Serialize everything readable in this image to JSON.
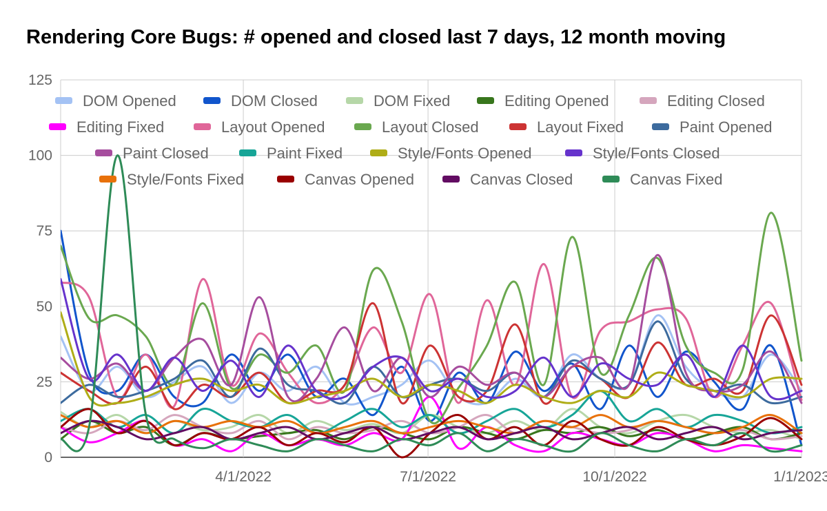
{
  "chart_data": {
    "type": "line",
    "title": "Rendering Core Bugs: # opened and closed last 7 days, 12 month moving",
    "xlabel": "",
    "ylabel": "",
    "ylim": [
      0,
      125
    ],
    "y_ticks": [
      0,
      25,
      50,
      75,
      100,
      125
    ],
    "xlim": [
      "2022-01-01",
      "2023-01-01"
    ],
    "x_ticks": [
      "4/1/2022",
      "7/1/2022",
      "10/1/2022",
      "1/1/2023"
    ],
    "grid": true,
    "legend_position": "top",
    "x_dates": [
      "2022-01-01",
      "2022-01-15",
      "2022-01-29",
      "2022-02-12",
      "2022-02-26",
      "2022-03-12",
      "2022-03-26",
      "2022-04-09",
      "2022-04-23",
      "2022-05-07",
      "2022-05-21",
      "2022-06-04",
      "2022-06-18",
      "2022-07-02",
      "2022-07-16",
      "2022-07-30",
      "2022-08-13",
      "2022-08-27",
      "2022-09-10",
      "2022-09-24",
      "2022-10-08",
      "2022-10-22",
      "2022-11-05",
      "2022-11-19",
      "2022-12-03",
      "2022-12-17",
      "2023-01-01"
    ],
    "series": [
      {
        "name": "DOM Opened",
        "color": "#a4c2f4",
        "values": [
          40,
          22,
          30,
          20,
          25,
          30,
          18,
          28,
          22,
          30,
          18,
          20,
          24,
          32,
          20,
          18,
          26,
          20,
          34,
          26,
          24,
          47,
          30,
          22,
          20,
          34,
          22
        ]
      },
      {
        "name": "DOM Closed",
        "color": "#1155cc",
        "values": [
          75,
          28,
          22,
          34,
          20,
          18,
          34,
          22,
          34,
          20,
          26,
          14,
          30,
          12,
          28,
          18,
          35,
          22,
          31,
          16,
          37,
          20,
          35,
          25,
          16,
          37,
          4
        ]
      },
      {
        "name": "DOM Fixed",
        "color": "#b6d7a8",
        "values": [
          15,
          10,
          14,
          8,
          12,
          9,
          10,
          14,
          8,
          12,
          9,
          11,
          8,
          14,
          10,
          8,
          12,
          9,
          16,
          10,
          8,
          12,
          14,
          10,
          8,
          9,
          6
        ]
      },
      {
        "name": "Editing Opened",
        "color": "#38761d",
        "values": [
          6,
          12,
          8,
          10,
          4,
          8,
          6,
          7,
          8,
          9,
          6,
          10,
          8,
          6,
          10,
          8,
          6,
          9,
          8,
          10,
          7,
          9,
          6,
          8,
          10,
          6,
          8
        ]
      },
      {
        "name": "Editing Closed",
        "color": "#d5a6bd",
        "values": [
          10,
          8,
          12,
          9,
          14,
          10,
          8,
          12,
          6,
          10,
          8,
          9,
          12,
          8,
          10,
          14,
          8,
          12,
          10,
          8,
          9,
          12,
          10,
          8,
          9,
          6,
          7
        ]
      },
      {
        "name": "Editing Fixed",
        "color": "#ff00ff",
        "values": [
          10,
          5,
          8,
          12,
          4,
          6,
          2,
          8,
          4,
          6,
          4,
          8,
          6,
          20,
          3,
          10,
          4,
          2,
          8,
          6,
          4,
          8,
          6,
          2,
          4,
          3,
          2
        ]
      },
      {
        "name": "Layout Opened",
        "color": "#e06699",
        "values": [
          58,
          53,
          20,
          34,
          17,
          59,
          24,
          41,
          28,
          18,
          24,
          43,
          28,
          54,
          18,
          52,
          24,
          64,
          20,
          42,
          45,
          49,
          46,
          20,
          37,
          51,
          19
        ]
      },
      {
        "name": "Layout Closed",
        "color": "#6aa84f",
        "values": [
          70,
          46,
          47,
          40,
          24,
          51,
          23,
          34,
          28,
          37,
          22,
          62,
          45,
          12,
          23,
          37,
          58,
          24,
          73,
          28,
          47,
          66,
          37,
          28,
          29,
          81,
          32
        ]
      },
      {
        "name": "Layout Fixed",
        "color": "#cc3333",
        "values": [
          28,
          22,
          18,
          30,
          16,
          24,
          20,
          28,
          18,
          22,
          24,
          51,
          18,
          37,
          20,
          22,
          44,
          18,
          30,
          26,
          20,
          38,
          24,
          26,
          22,
          47,
          24
        ]
      },
      {
        "name": "Paint Opened",
        "color": "#3d6b9e",
        "values": [
          18,
          24,
          20,
          22,
          26,
          32,
          20,
          36,
          24,
          22,
          18,
          30,
          20,
          24,
          26,
          22,
          28,
          20,
          32,
          26,
          24,
          45,
          26,
          22,
          24,
          18,
          20
        ]
      },
      {
        "name": "Paint Closed",
        "color": "#a64d9e",
        "values": [
          33,
          26,
          31,
          22,
          33,
          39,
          24,
          53,
          20,
          26,
          43,
          22,
          33,
          20,
          30,
          24,
          28,
          20,
          30,
          33,
          24,
          67,
          28,
          22,
          24,
          35,
          18
        ]
      },
      {
        "name": "Paint Fixed",
        "color": "#17a597",
        "values": [
          12,
          16,
          10,
          14,
          8,
          16,
          12,
          10,
          14,
          8,
          12,
          16,
          10,
          14,
          8,
          12,
          16,
          10,
          14,
          22,
          12,
          16,
          10,
          14,
          12,
          8,
          10
        ]
      },
      {
        "name": "Style/Fonts Opened",
        "color": "#afad17",
        "values": [
          48,
          20,
          18,
          20,
          24,
          26,
          22,
          24,
          18,
          20,
          22,
          26,
          20,
          24,
          22,
          18,
          24,
          20,
          18,
          22,
          20,
          28,
          24,
          22,
          20,
          26,
          26
        ]
      },
      {
        "name": "Style/Fonts Closed",
        "color": "#6633cc",
        "values": [
          59,
          26,
          34,
          22,
          33,
          22,
          32,
          20,
          37,
          22,
          20,
          30,
          33,
          22,
          26,
          20,
          22,
          33,
          20,
          31,
          26,
          24,
          34,
          20,
          37,
          20,
          22
        ]
      },
      {
        "name": "Style/Fonts Fixed",
        "color": "#e8710a",
        "values": [
          14,
          10,
          12,
          8,
          12,
          10,
          12,
          10,
          12,
          8,
          10,
          12,
          8,
          10,
          12,
          10,
          8,
          12,
          10,
          14,
          10,
          12,
          10,
          8,
          10,
          14,
          8
        ]
      },
      {
        "name": "Canvas Opened",
        "color": "#990000",
        "values": [
          10,
          16,
          8,
          12,
          4,
          8,
          6,
          10,
          4,
          8,
          5,
          10,
          0,
          8,
          14,
          6,
          10,
          4,
          12,
          6,
          4,
          10,
          6,
          4,
          7,
          13,
          6
        ]
      },
      {
        "name": "Canvas Closed",
        "color": "#620c62",
        "values": [
          8,
          12,
          10,
          6,
          8,
          10,
          6,
          8,
          10,
          6,
          8,
          10,
          6,
          8,
          10,
          6,
          8,
          10,
          6,
          8,
          10,
          6,
          8,
          10,
          6,
          8,
          9
        ]
      },
      {
        "name": "Canvas Fixed",
        "color": "#2e8b57",
        "values": [
          6,
          10,
          100,
          14,
          6,
          3,
          6,
          4,
          2,
          6,
          4,
          2,
          6,
          4,
          8,
          2,
          6,
          4,
          2,
          8,
          4,
          2,
          6,
          4,
          8,
          2,
          4
        ]
      }
    ]
  }
}
